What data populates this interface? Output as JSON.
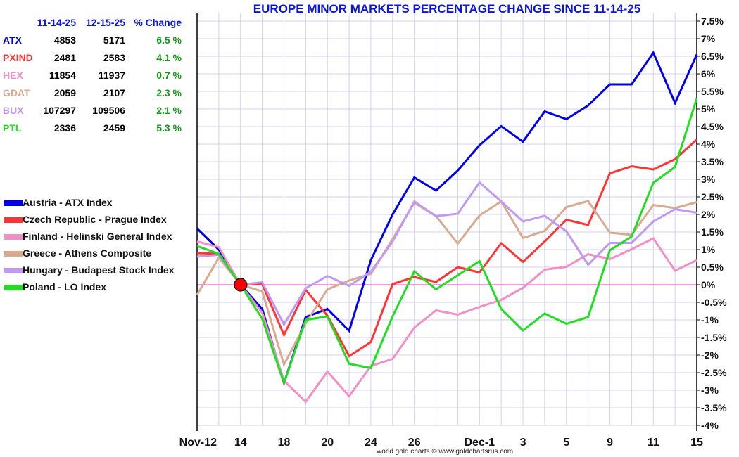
{
  "chart_data": {
    "type": "line",
    "title": "EUROPE MINOR MARKETS PERCENTAGE CHANGE SINCE 11-14-25",
    "footer": "world gold charts © www.goldchartsrus.com",
    "xlabel": "",
    "ylabel": "",
    "ylim": [
      -4,
      7.5
    ],
    "ytick_step": 0.5,
    "grid": true,
    "legend_position": "left",
    "x_dates": [
      "Nov-12",
      "Nov-13",
      "Nov-14",
      "Nov-17",
      "Nov-18",
      "Nov-19",
      "Nov-20",
      "Nov-21",
      "Nov-24",
      "Nov-25",
      "Nov-26",
      "Nov-27",
      "Nov-28",
      "Dec-1",
      "Dec-2",
      "Dec-3",
      "Dec-4",
      "Dec-5",
      "Dec-8",
      "Dec-9",
      "Dec-10",
      "Dec-11",
      "Dec-12",
      "Dec-15"
    ],
    "x_tick_labels": [
      {
        "index": 0,
        "label": "Nov-12"
      },
      {
        "index": 2,
        "label": "14"
      },
      {
        "index": 4,
        "label": "18"
      },
      {
        "index": 6,
        "label": "20"
      },
      {
        "index": 8,
        "label": "24"
      },
      {
        "index": 10,
        "label": "26"
      },
      {
        "index": 13,
        "label": "Dec-1"
      },
      {
        "index": 15,
        "label": "3"
      },
      {
        "index": 17,
        "label": "5"
      },
      {
        "index": 19,
        "label": "9"
      },
      {
        "index": 21,
        "label": "11"
      },
      {
        "index": 23,
        "label": "15"
      }
    ],
    "base_index": 2,
    "series": [
      {
        "name": "Austria - ATX Index",
        "color": "#0000ee",
        "values": [
          1.6,
          1.0,
          0,
          -0.69,
          -2.8,
          -0.92,
          -0.69,
          -1.31,
          0.7,
          2.0,
          3.05,
          2.68,
          3.25,
          3.97,
          4.51,
          4.07,
          4.93,
          4.71,
          5.1,
          5.7,
          5.7,
          6.6,
          5.17,
          6.55
        ]
      },
      {
        "name": "Czech Republic - Prague Index",
        "color": "#ff3333",
        "values": [
          0.9,
          0.88,
          0,
          0.02,
          -1.43,
          -0.15,
          -0.88,
          -2.03,
          -1.63,
          0.02,
          0.22,
          0.08,
          0.5,
          0.35,
          1.18,
          0.65,
          1.23,
          1.85,
          1.7,
          3.17,
          3.37,
          3.28,
          3.57,
          4.13
        ]
      },
      {
        "name": "Finland - Helinski General Index",
        "color": "#f28fc6",
        "values": [
          1.23,
          1.07,
          0,
          -0.8,
          -2.73,
          -3.33,
          -2.47,
          -3.17,
          -2.31,
          -2.11,
          -1.22,
          -0.73,
          -0.85,
          -0.63,
          -0.43,
          -0.09,
          0.43,
          0.51,
          0.87,
          0.73,
          1.01,
          1.32,
          0.4,
          0.7
        ]
      },
      {
        "name": "Greece - Athens Composite",
        "color": "#d9aa8f",
        "values": [
          -0.29,
          0.77,
          0,
          -0.19,
          -2.27,
          -1.1,
          -0.13,
          0.12,
          0.31,
          1.3,
          2.33,
          1.95,
          1.17,
          1.97,
          2.37,
          1.33,
          1.53,
          2.21,
          2.38,
          1.48,
          1.42,
          2.27,
          2.18,
          2.35
        ]
      },
      {
        "name": "Hungary - Budapest Stock Index",
        "color": "#c099f2",
        "values": [
          0.8,
          0.85,
          0,
          0.07,
          -1.13,
          -0.1,
          0.25,
          -0.03,
          0.37,
          1.23,
          2.37,
          1.95,
          2.02,
          2.91,
          2.37,
          1.8,
          1.96,
          1.52,
          0.57,
          1.19,
          1.19,
          1.8,
          2.15,
          2.05
        ]
      },
      {
        "name": "Poland - LO Index",
        "color": "#22dd22",
        "values": [
          1.1,
          0.88,
          0,
          -0.97,
          -2.8,
          -1.0,
          -0.9,
          -2.25,
          -2.37,
          -0.9,
          0.38,
          -0.13,
          0.27,
          0.67,
          -0.69,
          -1.3,
          -0.82,
          -1.11,
          -0.92,
          0.98,
          1.37,
          2.9,
          3.35,
          5.3
        ]
      }
    ],
    "summary_table": {
      "headers": [
        "11-14-25",
        "12-15-25",
        "% Change"
      ],
      "rows": [
        {
          "ticker": "ATX",
          "color": "#0000ee",
          "start": "4853",
          "end": "5171",
          "change": "6.5 %"
        },
        {
          "ticker": "PXIND",
          "color": "#ff3333",
          "start": "2481",
          "end": "2583",
          "change": "4.1 %"
        },
        {
          "ticker": "HEX",
          "color": "#f28fc6",
          "start": "11854",
          "end": "11937",
          "change": "0.7 %"
        },
        {
          "ticker": "GDAT",
          "color": "#d9aa8f",
          "start": "2059",
          "end": "2107",
          "change": "2.3 %"
        },
        {
          "ticker": "BUX",
          "color": "#c099f2",
          "start": "107297",
          "end": "109506",
          "change": "2.1 %"
        },
        {
          "ticker": "PTL",
          "color": "#22dd22",
          "start": "2336",
          "end": "2459",
          "change": "5.3 %"
        }
      ]
    }
  }
}
